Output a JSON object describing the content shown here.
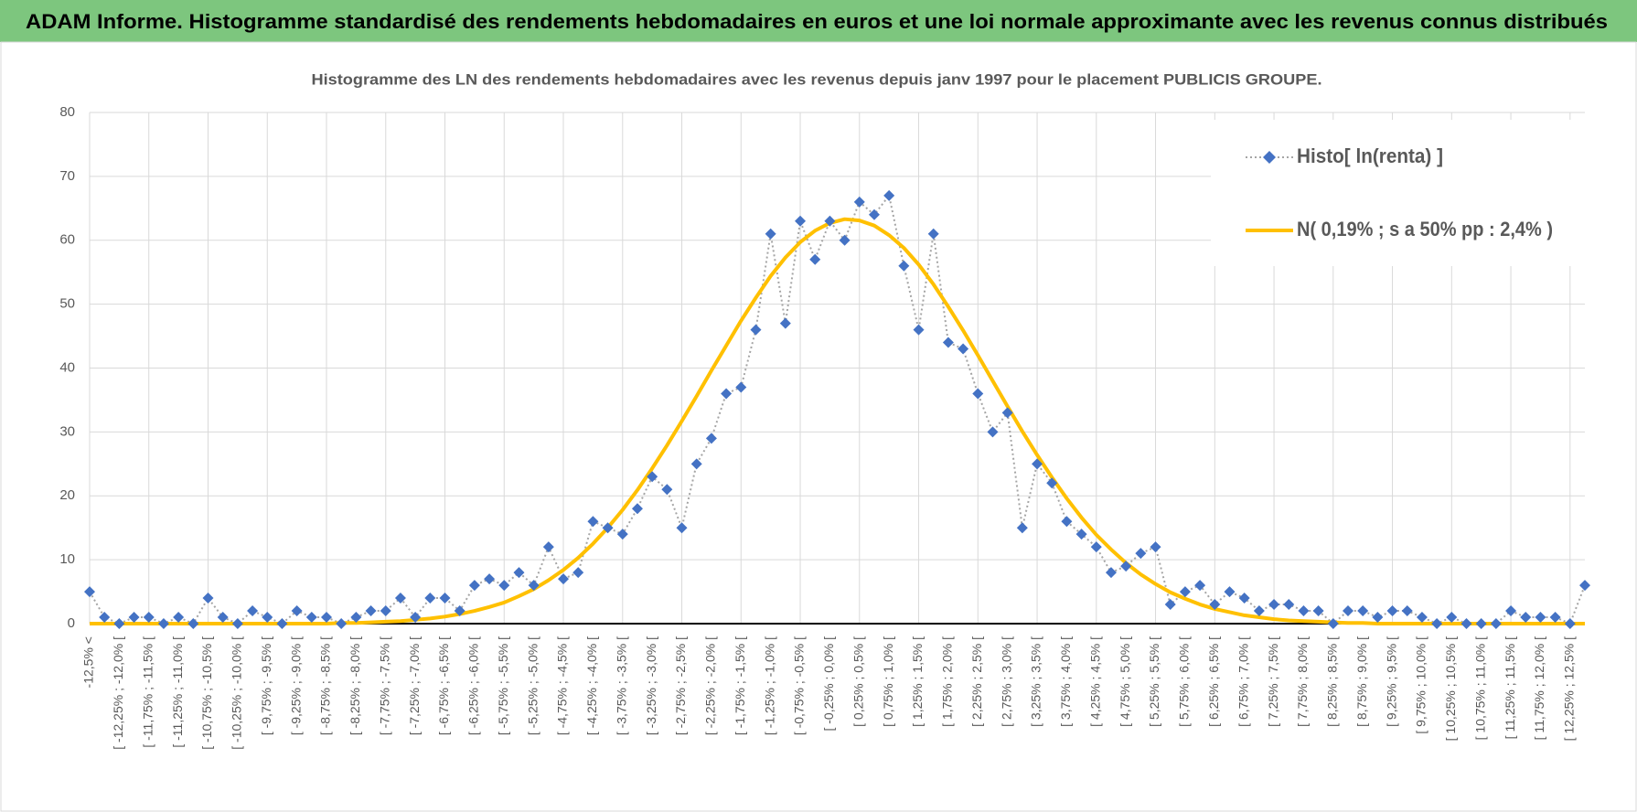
{
  "header": {
    "title": "ADAM Informe. Histogramme standardisé des rendements hebdomadaires en euros et une loi normale approximante avec les revenus connus distribués"
  },
  "chart_data": {
    "type": "line",
    "title": "Histogramme des LN des rendements hebdomadaires avec les revenus depuis janv 1997 pour le placement PUBLICIS GROUPE.",
    "categories": [
      "-12,5% <",
      null,
      "[ -12,25% ; -12,0% [",
      null,
      "[ -11,75% ; -11,5% [",
      null,
      "[ -11,25% ; -11,0% [",
      null,
      "[ -10,75% ; -10,5% [",
      null,
      "[ -10,25% ; -10,0% [",
      null,
      "[ -9,75% ; -9,5% [",
      null,
      "[ -9,25% ; -9,0% [",
      null,
      "[ -8,75% ; -8,5% [",
      null,
      "[ -8,25% ; -8,0% [",
      null,
      "[ -7,75% ; -7,5% [",
      null,
      "[ -7,25% ; -7,0% [",
      null,
      "[ -6,75% ; -6,5% [",
      null,
      "[ -6,25% ; -6,0% [",
      null,
      "[ -5,75% ; -5,5% [",
      null,
      "[ -5,25% ; -5,0% [",
      null,
      "[ -4,75% ; -4,5% [",
      null,
      "[ -4,25% ; -4,0% [",
      null,
      "[ -3,75% ; -3,5% [",
      null,
      "[ -3,25% ; -3,0% [",
      null,
      "[ -2,75% ; -2,5% [",
      null,
      "[ -2,25% ; -2,0% [",
      null,
      "[ -1,75% ; -1,5% [",
      null,
      "[ -1,25% ; -1,0% [",
      null,
      "[ -0,75% ; -0,5% [",
      null,
      "[ -0,25% ; 0,0% [",
      null,
      "[ 0,25% ; 0,5% [",
      null,
      "[ 0,75% ; 1,0% [",
      null,
      "[ 1,25% ; 1,5% [",
      null,
      "[ 1,75% ; 2,0% [",
      null,
      "[ 2,25% ; 2,5% [",
      null,
      "[ 2,75% ; 3,0% [",
      null,
      "[ 3,25% ; 3,5% [",
      null,
      "[ 3,75% ; 4,0% [",
      null,
      "[ 4,25% ; 4,5% [",
      null,
      "[ 4,75% ; 5,0% [",
      null,
      "[ 5,25% ; 5,5% [",
      null,
      "[ 5,75% ; 6,0% [",
      null,
      "[ 6,25% ; 6,5% [",
      null,
      "[ 6,75% ; 7,0% [",
      null,
      "[ 7,25% ; 7,5% [",
      null,
      "[ 7,75% ; 8,0% [",
      null,
      "[ 8,25% ; 8,5% [",
      null,
      "[ 8,75% ; 9,0% [",
      null,
      "[ 9,25% ; 9,5% [",
      null,
      "[ 9,75% ; 10,0% [",
      null,
      "[ 10,25% ; 10,5% [",
      null,
      "[ 10,75% ; 11,0% [",
      null,
      "[ 11,25% ; 11,5% [",
      null,
      "[ 11,75% ; 12,0% [",
      null,
      "[ 12,25% ; 12,5% [",
      null
    ],
    "series": [
      {
        "name": "Histo[ ln(renta) ]",
        "color": "#4472c4",
        "line_color": "#a5a5a5",
        "values": [
          5,
          1,
          0,
          1,
          1,
          0,
          1,
          0,
          4,
          1,
          0,
          2,
          1,
          0,
          2,
          1,
          1,
          0,
          1,
          2,
          2,
          4,
          1,
          4,
          4,
          2,
          6,
          7,
          6,
          8,
          6,
          12,
          7,
          8,
          16,
          15,
          14,
          18,
          23,
          21,
          15,
          25,
          29,
          36,
          37,
          46,
          61,
          47,
          63,
          57,
          63,
          60,
          66,
          64,
          67,
          56,
          46,
          61,
          44,
          43,
          36,
          30,
          33,
          15,
          25,
          22,
          16,
          14,
          12,
          8,
          9,
          11,
          12,
          3,
          5,
          6,
          3,
          5,
          4,
          2,
          3,
          3,
          2,
          2,
          0,
          2,
          2,
          1,
          2,
          2,
          1,
          0,
          1,
          0,
          0,
          0,
          2,
          1,
          1,
          1,
          0,
          6
        ]
      },
      {
        "name": "N( 0,19% ; s a 50% pp : 2,4% )",
        "color": "#ffc000",
        "values": [
          0,
          0,
          0,
          0,
          0,
          0,
          0,
          0,
          0,
          0,
          0,
          0,
          0,
          0,
          0,
          0,
          0,
          0.1,
          0.1,
          0.2,
          0.3,
          0.4,
          0.6,
          0.8,
          1.1,
          1.5,
          2.0,
          2.6,
          3.3,
          4.3,
          5.4,
          6.8,
          8.4,
          10.3,
          12.5,
          15.0,
          17.8,
          20.9,
          24.3,
          27.9,
          31.7,
          35.6,
          39.6,
          43.5,
          47.4,
          51.0,
          54.4,
          57.3,
          59.7,
          61.5,
          62.7,
          63.3,
          63.1,
          62.3,
          60.8,
          58.8,
          56.2,
          53.1,
          49.6,
          45.9,
          42.0,
          38.0,
          34.0,
          30.1,
          26.4,
          22.9,
          19.6,
          16.6,
          13.9,
          11.6,
          9.5,
          7.7,
          6.2,
          4.9,
          3.9,
          3.0,
          2.3,
          1.8,
          1.3,
          1.0,
          0.7,
          0.5,
          0.4,
          0.3,
          0.2,
          0.1,
          0.1,
          0,
          0,
          0,
          0,
          0,
          0,
          0,
          0,
          0,
          0,
          0,
          0,
          0,
          0,
          0
        ]
      }
    ],
    "ylim": [
      0,
      80
    ],
    "yticks": [
      0,
      10,
      20,
      30,
      40,
      50,
      60,
      70,
      80
    ],
    "grid": true,
    "legend": "top-right"
  }
}
